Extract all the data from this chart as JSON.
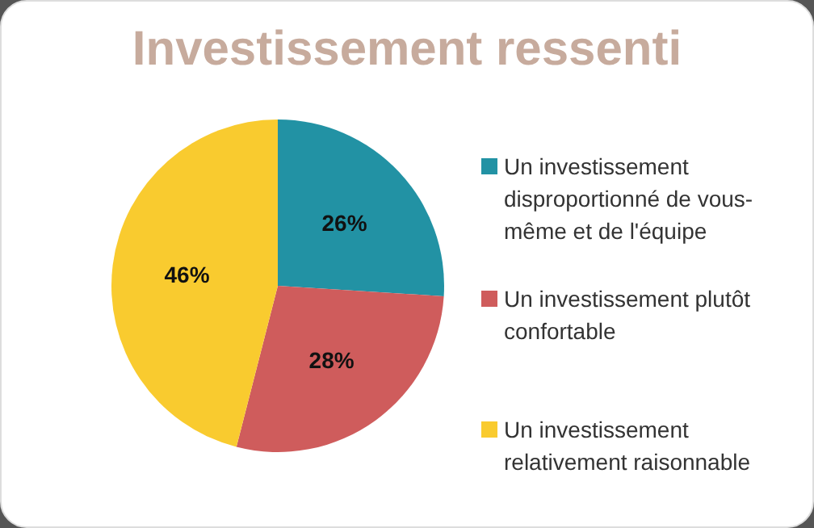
{
  "chart_data": {
    "type": "pie",
    "title": "Investissement ressenti",
    "categories": [
      "Un investissement disproportionné de vous-même et de l'équipe",
      "Un investissement plutôt confortable",
      "Un investissement relativement raisonnable"
    ],
    "values": [
      26,
      28,
      46
    ],
    "colors": [
      "#2292a4",
      "#cf5c5c",
      "#f9cb2f"
    ],
    "value_labels": [
      "26%",
      "28%",
      "46%"
    ],
    "legend": "right"
  }
}
